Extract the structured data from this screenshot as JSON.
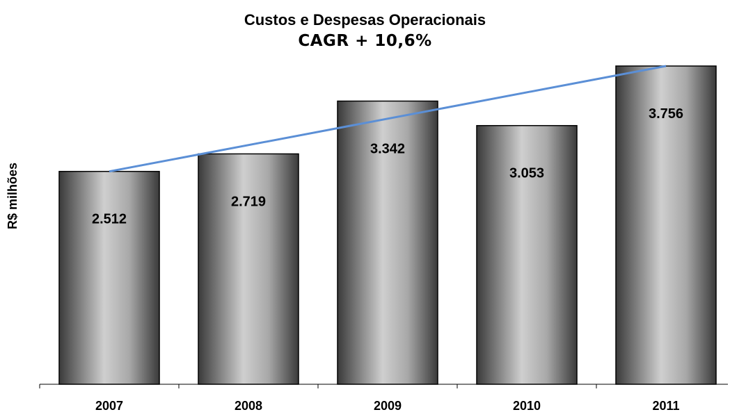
{
  "chart_data": {
    "type": "bar",
    "title": "Custos e Despesas Operacionais",
    "subtitle": "CAGR  + 10,6%",
    "ylabel": "R$ milhões",
    "xlabel": "",
    "categories": [
      "2007",
      "2008",
      "2009",
      "2010",
      "2011"
    ],
    "values": [
      2512,
      2719,
      3342,
      3053,
      3756
    ],
    "value_labels": [
      "2.512",
      "2.719",
      "3.342",
      "3.053",
      "3.756"
    ],
    "ylim": [
      0,
      3756
    ],
    "trend_line": {
      "from_category": "2007",
      "to_category": "2011",
      "from_value": 2512,
      "to_value": 3756
    },
    "grid": false,
    "legend": "none",
    "colors": {
      "bar_dark": "#3a3a3a",
      "bar_light": "#c9c9c9",
      "trend": "#5b8fd6"
    }
  }
}
